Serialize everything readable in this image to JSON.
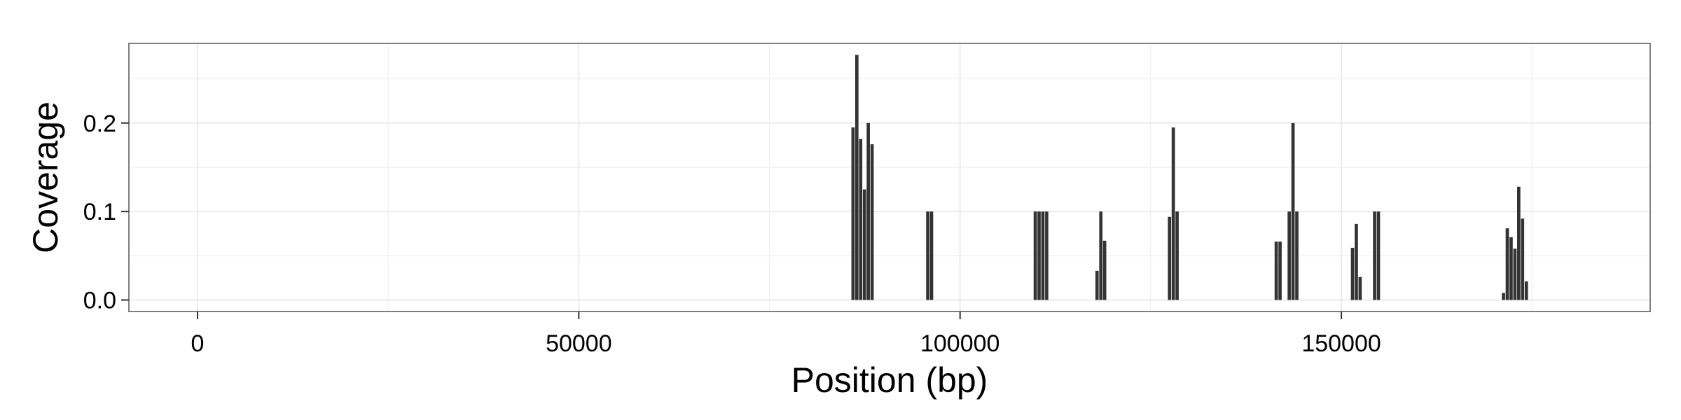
{
  "chart_data": {
    "type": "bar",
    "title": "",
    "xlabel": "Position (bp)",
    "ylabel": "Coverage",
    "xlim": [
      -9000,
      190500
    ],
    "ylim": [
      -0.013,
      0.29
    ],
    "x_ticks": [
      0,
      50000,
      100000,
      150000
    ],
    "x_tick_labels": [
      "0",
      "50000",
      "100000",
      "150000"
    ],
    "y_ticks": [
      0.0,
      0.1,
      0.2
    ],
    "y_tick_labels": [
      "0.0",
      "0.1",
      "0.2"
    ],
    "grid": true,
    "legend": "none",
    "bar_width": 500,
    "bar_color": "#333333",
    "panel_background": "#ffffff",
    "series": [
      {
        "points": [
          {
            "x": 86000,
            "y": 0.195
          },
          {
            "x": 86500,
            "y": 0.277
          },
          {
            "x": 87000,
            "y": 0.182
          },
          {
            "x": 87500,
            "y": 0.125
          },
          {
            "x": 88000,
            "y": 0.2
          },
          {
            "x": 88500,
            "y": 0.176
          },
          {
            "x": 95800,
            "y": 0.1
          },
          {
            "x": 96300,
            "y": 0.1
          },
          {
            "x": 109900,
            "y": 0.1
          },
          {
            "x": 110400,
            "y": 0.1
          },
          {
            "x": 110900,
            "y": 0.1
          },
          {
            "x": 111400,
            "y": 0.1
          },
          {
            "x": 118000,
            "y": 0.033
          },
          {
            "x": 118500,
            "y": 0.1
          },
          {
            "x": 119000,
            "y": 0.067
          },
          {
            "x": 127500,
            "y": 0.094
          },
          {
            "x": 128000,
            "y": 0.195
          },
          {
            "x": 128500,
            "y": 0.1
          },
          {
            "x": 141500,
            "y": 0.066
          },
          {
            "x": 142000,
            "y": 0.066
          },
          {
            "x": 143200,
            "y": 0.1
          },
          {
            "x": 143700,
            "y": 0.2
          },
          {
            "x": 144200,
            "y": 0.1
          },
          {
            "x": 151500,
            "y": 0.059
          },
          {
            "x": 152000,
            "y": 0.086
          },
          {
            "x": 152500,
            "y": 0.026
          },
          {
            "x": 154400,
            "y": 0.1
          },
          {
            "x": 154900,
            "y": 0.1
          },
          {
            "x": 171300,
            "y": 0.008
          },
          {
            "x": 171800,
            "y": 0.081
          },
          {
            "x": 172300,
            "y": 0.071
          },
          {
            "x": 172800,
            "y": 0.058
          },
          {
            "x": 173300,
            "y": 0.128
          },
          {
            "x": 173800,
            "y": 0.092
          },
          {
            "x": 174300,
            "y": 0.021
          }
        ]
      }
    ]
  }
}
